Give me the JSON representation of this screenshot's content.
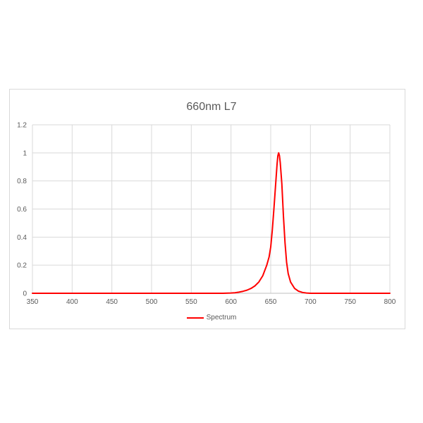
{
  "chart_data": {
    "type": "line",
    "title": "660nm L7",
    "xlabel": "",
    "ylabel": "",
    "xlim": [
      350,
      800
    ],
    "ylim": [
      0,
      1.2
    ],
    "x_ticks": [
      "350",
      "400",
      "450",
      "500",
      "550",
      "600",
      "650",
      "700",
      "750",
      "800"
    ],
    "y_ticks": [
      "0",
      "0.2",
      "0.4",
      "0.6",
      "0.8",
      "1",
      "1.2"
    ],
    "grid": true,
    "legend_position": "bottom",
    "series": [
      {
        "name": "Spectrum",
        "color": "#ff0000",
        "x": [
          350,
          400,
          450,
          500,
          550,
          590,
          600,
          605,
          610,
          615,
          620,
          625,
          630,
          635,
          640,
          645,
          648,
          650,
          652,
          654,
          656,
          658,
          659,
          660,
          661,
          662,
          664,
          666,
          668,
          670,
          672,
          675,
          680,
          685,
          690,
          695,
          700,
          750,
          800
        ],
        "y": [
          0,
          0,
          0,
          0,
          0,
          0,
          0.002,
          0.004,
          0.008,
          0.014,
          0.022,
          0.034,
          0.052,
          0.08,
          0.125,
          0.2,
          0.26,
          0.33,
          0.45,
          0.6,
          0.76,
          0.92,
          0.98,
          1.0,
          0.98,
          0.93,
          0.78,
          0.55,
          0.36,
          0.22,
          0.14,
          0.08,
          0.035,
          0.015,
          0.006,
          0.002,
          0,
          0,
          0
        ]
      }
    ]
  }
}
